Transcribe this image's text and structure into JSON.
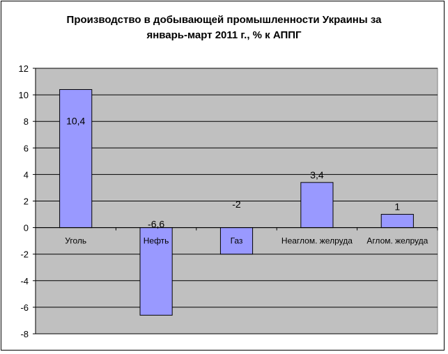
{
  "chart_data": {
    "type": "bar",
    "title_line1": "Производство в добывающей промышленности Украины за",
    "title_line2": "январь-март 2011 г., % к АППГ",
    "categories": [
      "Уголь",
      "Нефть",
      "Газ",
      "Неаглом. желруда",
      "Аглом. желруда"
    ],
    "values": [
      10.4,
      -6.6,
      -2,
      3.4,
      1
    ],
    "data_labels": [
      "10,4",
      "-6,6",
      "-2",
      "3,4",
      "1"
    ],
    "ylim": [
      -8,
      12
    ],
    "yticks": [
      -8,
      -6,
      -4,
      -2,
      0,
      2,
      4,
      6,
      8,
      10,
      12
    ],
    "grid": true,
    "legend": "none",
    "colors": {
      "bar": "#9999ff",
      "bar_stroke": "#000000",
      "plot_bg": "#c0c0c0",
      "grid": "#000000"
    }
  }
}
